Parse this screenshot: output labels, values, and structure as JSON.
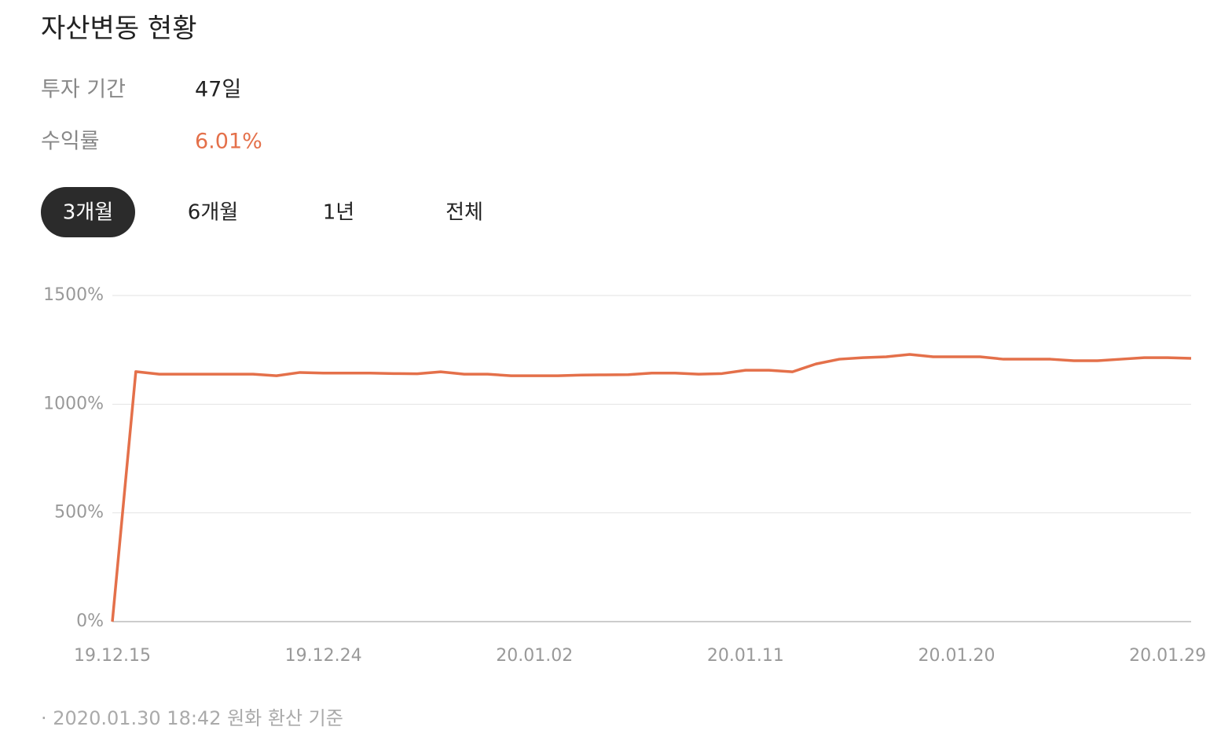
{
  "header": {
    "title": "자산변동 현황",
    "rows": [
      {
        "label": "투자 기간",
        "value": "47일"
      },
      {
        "label": "수익률",
        "value": "6.01%"
      }
    ]
  },
  "tabs": [
    {
      "label": "3개월",
      "active": true
    },
    {
      "label": "6개월",
      "active": false
    },
    {
      "label": "1년",
      "active": false
    },
    {
      "label": "전체",
      "active": false
    }
  ],
  "chart_data": {
    "type": "line",
    "categories": [
      "19.12.15",
      null,
      null,
      null,
      null,
      null,
      null,
      null,
      null,
      "19.12.24",
      null,
      null,
      null,
      null,
      null,
      null,
      null,
      null,
      "20.01.02",
      null,
      null,
      null,
      null,
      null,
      null,
      null,
      null,
      "20.01.11",
      null,
      null,
      null,
      null,
      null,
      null,
      null,
      null,
      "20.01.20",
      null,
      null,
      null,
      null,
      null,
      null,
      null,
      null,
      "20.01.29",
      null
    ],
    "series": [
      {
        "color": "#e4704a",
        "values": [
          0,
          1150,
          1138,
          1138,
          1138,
          1138,
          1138,
          1131,
          1146,
          1143,
          1143,
          1143,
          1141,
          1140,
          1149,
          1138,
          1138,
          1131,
          1131,
          1131,
          1134,
          1135,
          1136,
          1143,
          1143,
          1138,
          1141,
          1156,
          1156,
          1149,
          1185,
          1207,
          1214,
          1218,
          1229,
          1218,
          1218,
          1218,
          1207,
          1207,
          1207,
          1200,
          1200,
          1207,
          1214,
          1214,
          1211
        ]
      }
    ],
    "ylim": [
      0,
      1500
    ],
    "yticks": [
      {
        "value": 0,
        "label": "0%"
      },
      {
        "value": 500,
        "label": "500%"
      },
      {
        "value": 1000,
        "label": "1000%"
      },
      {
        "value": 1500,
        "label": "1500%"
      }
    ],
    "grid": true
  },
  "footer": "· 2020.01.30 18:42 원화 환산 기준"
}
